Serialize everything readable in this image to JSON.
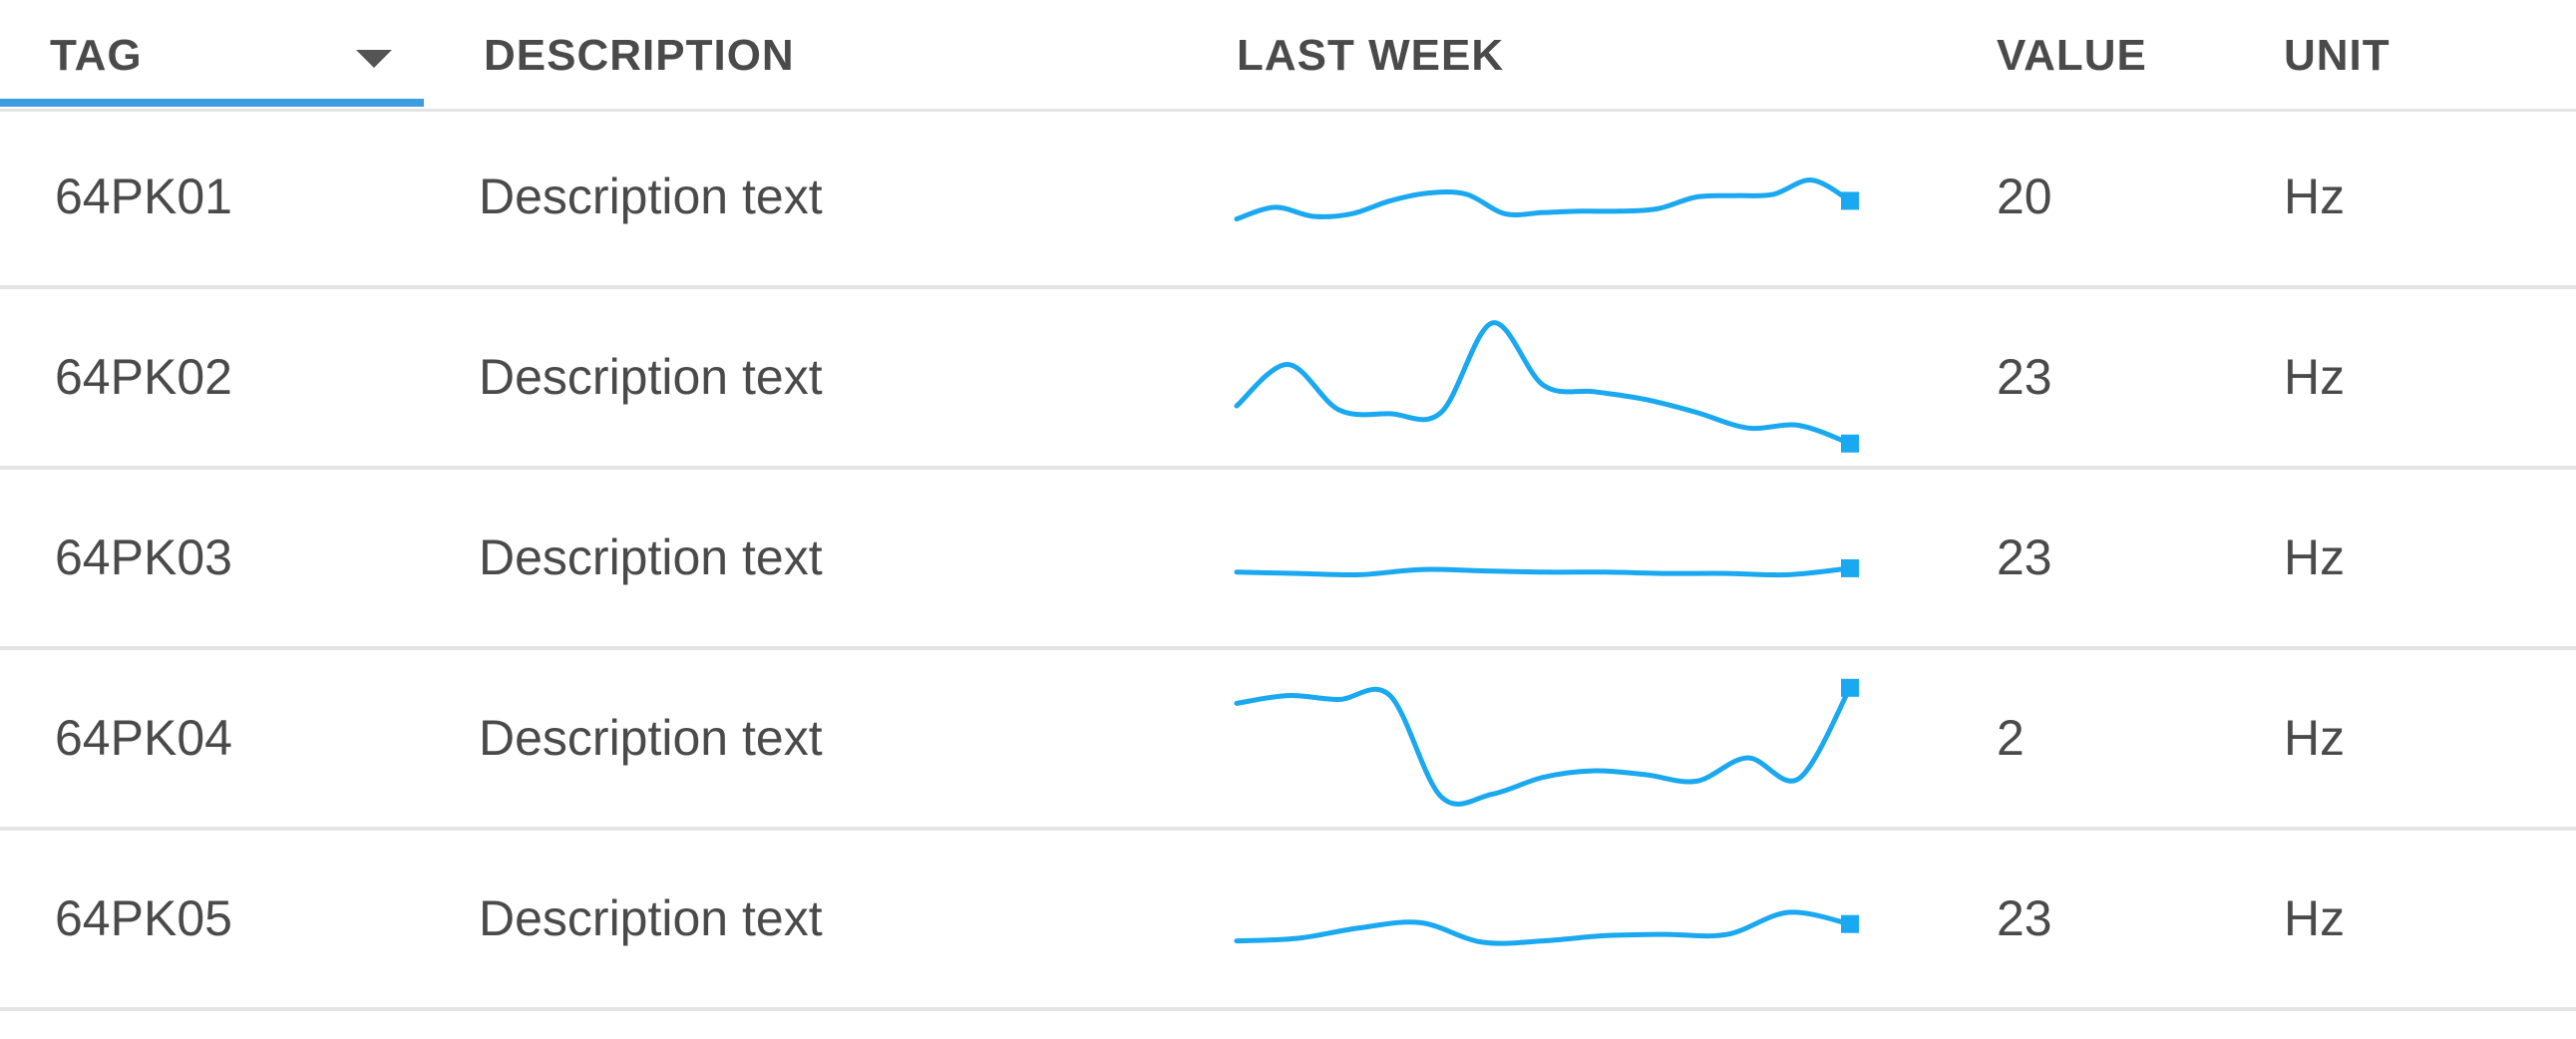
{
  "columns": {
    "tag": "TAG",
    "description": "DESCRIPTION",
    "last_week": "LAST WEEK",
    "value": "VALUE",
    "unit": "UNIT"
  },
  "sort": {
    "column": "tag",
    "icon": "caret-down-icon"
  },
  "accent_color": "#3d9be0",
  "sparkline_color": "#1aa8f0",
  "rows": [
    {
      "tag": "64PK01",
      "description": "Description text",
      "value": "20",
      "unit": "Hz",
      "trend": [
        0.38,
        0.47,
        0.4,
        0.42,
        0.52,
        0.58,
        0.57,
        0.42,
        0.43,
        0.44,
        0.44,
        0.46,
        0.55,
        0.56,
        0.57,
        0.68,
        0.52
      ]
    },
    {
      "tag": "64PK02",
      "description": "Description text",
      "value": "23",
      "unit": "Hz",
      "trend": [
        0.33,
        0.65,
        0.3,
        0.27,
        0.28,
        0.97,
        0.49,
        0.44,
        0.38,
        0.28,
        0.16,
        0.18,
        0.04
      ]
    },
    {
      "tag": "64PK03",
      "description": "Description text",
      "value": "23",
      "unit": "Hz",
      "trend": [
        0.44,
        0.43,
        0.42,
        0.46,
        0.45,
        0.44,
        0.44,
        0.43,
        0.43,
        0.42,
        0.47
      ]
    },
    {
      "tag": "64PK04",
      "description": "Description text",
      "value": "2",
      "unit": "Hz",
      "trend": [
        0.82,
        0.88,
        0.85,
        0.88,
        0.1,
        0.12,
        0.25,
        0.3,
        0.27,
        0.22,
        0.4,
        0.24,
        0.94
      ]
    },
    {
      "tag": "64PK05",
      "description": "Description text",
      "value": "23",
      "unit": "Hz",
      "trend": [
        0.38,
        0.4,
        0.48,
        0.52,
        0.37,
        0.38,
        0.42,
        0.43,
        0.43,
        0.6,
        0.51
      ]
    }
  ]
}
